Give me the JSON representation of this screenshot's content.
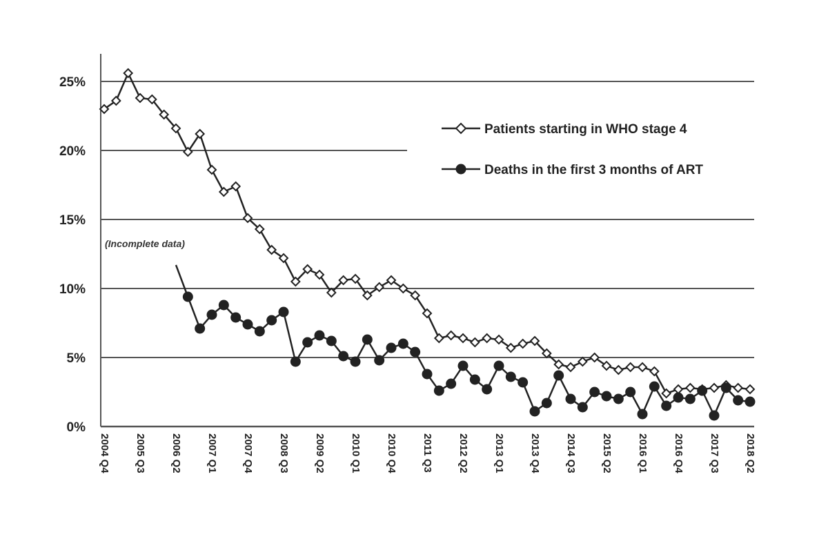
{
  "chart_data": {
    "type": "line",
    "ylim": [
      0,
      0.26
    ],
    "y_ticks": [
      "0%",
      "5%",
      "10%",
      "15%",
      "20%",
      "25%"
    ],
    "y_tick_values": [
      0,
      0.05,
      0.1,
      0.15,
      0.2,
      0.25
    ],
    "grid": "horizontal",
    "legend_position": "top-right",
    "x_tick_labels": [
      "2004 Q4",
      "2005 Q3",
      "2006 Q2",
      "2007 Q1",
      "2007 Q4",
      "2008 Q3",
      "2009 Q2",
      "2010 Q1",
      "2010 Q4",
      "2011 Q3",
      "2012 Q2",
      "2013 Q1",
      "2013 Q4",
      "2014 Q3",
      "2015 Q2",
      "2016 Q1",
      "2016 Q4",
      "2017 Q3",
      "2018 Q2"
    ],
    "x": [
      "2004 Q4",
      "2005 Q1",
      "2005 Q2",
      "2005 Q3",
      "2005 Q4",
      "2006 Q1",
      "2006 Q2",
      "2006 Q3",
      "2006 Q4",
      "2007 Q1",
      "2007 Q2",
      "2007 Q3",
      "2007 Q4",
      "2008 Q1",
      "2008 Q2",
      "2008 Q3",
      "2008 Q4",
      "2009 Q1",
      "2009 Q2",
      "2009 Q3",
      "2009 Q4",
      "2010 Q1",
      "2010 Q2",
      "2010 Q3",
      "2010 Q4",
      "2011 Q1",
      "2011 Q2",
      "2011 Q3",
      "2011 Q4",
      "2012 Q1",
      "2012 Q2",
      "2012 Q3",
      "2012 Q4",
      "2013 Q1",
      "2013 Q2",
      "2013 Q3",
      "2013 Q4",
      "2014 Q1",
      "2014 Q2",
      "2014 Q3",
      "2014 Q4",
      "2015 Q1",
      "2015 Q2",
      "2015 Q3",
      "2015 Q4",
      "2016 Q1",
      "2016 Q2",
      "2016 Q3",
      "2016 Q4",
      "2017 Q1",
      "2017 Q2",
      "2017 Q3",
      "2017 Q4",
      "2018 Q1",
      "2018 Q2"
    ],
    "series": [
      {
        "name": "Patients starting in WHO stage 4",
        "marker": "open-diamond",
        "values": [
          0.23,
          0.236,
          0.256,
          0.238,
          0.237,
          0.226,
          0.216,
          0.199,
          0.212,
          0.186,
          0.17,
          0.174,
          0.151,
          0.143,
          0.128,
          0.122,
          0.105,
          0.114,
          0.11,
          0.097,
          0.106,
          0.107,
          0.095,
          0.101,
          0.106,
          0.1,
          0.095,
          0.082,
          0.064,
          0.066,
          0.064,
          0.061,
          0.064,
          0.063,
          0.057,
          0.06,
          0.062,
          0.053,
          0.045,
          0.043,
          0.047,
          0.05,
          0.044,
          0.041,
          0.043,
          0.043,
          0.04,
          0.024,
          0.027,
          0.028,
          0.027,
          0.028,
          0.03,
          0.028,
          0.027
        ]
      },
      {
        "name": "Deaths in the first 3 months of ART",
        "marker": "filled-circle",
        "values": [
          null,
          null,
          null,
          null,
          null,
          null,
          0.117,
          0.094,
          0.071,
          0.081,
          0.088,
          0.079,
          0.074,
          0.069,
          0.077,
          0.083,
          0.047,
          0.061,
          0.066,
          0.062,
          0.051,
          0.047,
          0.063,
          0.048,
          0.057,
          0.06,
          0.054,
          0.038,
          0.026,
          0.031,
          0.044,
          0.034,
          0.027,
          0.044,
          0.036,
          0.032,
          0.011,
          0.017,
          0.037,
          0.02,
          0.014,
          0.025,
          0.022,
          0.02,
          0.025,
          0.009,
          0.029,
          0.015,
          0.021,
          0.02,
          0.026,
          0.008,
          0.028,
          0.019,
          0.018
        ]
      }
    ],
    "annotations": [
      "(Incomplete data)"
    ]
  }
}
